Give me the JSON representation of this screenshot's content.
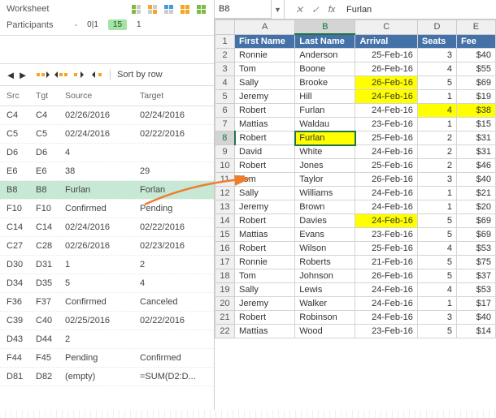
{
  "left": {
    "worksheet_label": "Worksheet",
    "participants_label": "Participants",
    "counts": {
      "dash": "-",
      "zeroOne": "0|1",
      "fifteen": "15",
      "one": "1"
    },
    "sort_label": "Sort by row",
    "columns": {
      "src": "Src",
      "tgt": "Tgt",
      "source": "Source",
      "target": "Target"
    },
    "rows": [
      {
        "src": "C4",
        "tgt": "C4",
        "source": "02/26/2016",
        "target": "02/24/2016"
      },
      {
        "src": "C5",
        "tgt": "C5",
        "source": "02/24/2016",
        "target": "02/22/2016"
      },
      {
        "src": "D6",
        "tgt": "D6",
        "source": "4",
        "target": ""
      },
      {
        "src": "E6",
        "tgt": "E6",
        "source": "38",
        "target": "29"
      },
      {
        "src": "B8",
        "tgt": "B8",
        "source": "Furlan",
        "target": "Forlan",
        "selected": true
      },
      {
        "src": "F10",
        "tgt": "F10",
        "source": "Confirmed",
        "target": "Pending"
      },
      {
        "src": "C14",
        "tgt": "C14",
        "source": "02/24/2016",
        "target": "02/22/2016"
      },
      {
        "src": "C27",
        "tgt": "C28",
        "source": "02/26/2016",
        "target": "02/23/2016"
      },
      {
        "src": "D30",
        "tgt": "D31",
        "source": "1",
        "target": "2"
      },
      {
        "src": "D34",
        "tgt": "D35",
        "source": "5",
        "target": "4"
      },
      {
        "src": "F36",
        "tgt": "F37",
        "source": "Confirmed",
        "target": "Canceled"
      },
      {
        "src": "C39",
        "tgt": "C40",
        "source": "02/25/2016",
        "target": "02/22/2016"
      },
      {
        "src": "D43",
        "tgt": "D44",
        "source": "2",
        "target": ""
      },
      {
        "src": "F44",
        "tgt": "F45",
        "source": "Pending",
        "target": "Confirmed"
      },
      {
        "src": "D81",
        "tgt": "D82",
        "source": "(empty)",
        "target": "=SUM(D2:D..."
      }
    ]
  },
  "formula_bar": {
    "name_box": "B8",
    "value": "Furlan"
  },
  "sheet": {
    "columns": [
      "A",
      "B",
      "C",
      "D",
      "E"
    ],
    "active_col": "B",
    "active_row": 8,
    "header": [
      "First Name",
      "Last Name",
      "Arrival",
      "Seats",
      "Fee"
    ],
    "rows": [
      {
        "n": 2,
        "first": "Ronnie",
        "last": "Anderson",
        "arr": "25-Feb-16",
        "seats": "3",
        "fee": "$40"
      },
      {
        "n": 3,
        "first": "Tom",
        "last": "Boone",
        "arr": "26-Feb-16",
        "seats": "4",
        "fee": "$55"
      },
      {
        "n": 4,
        "first": "Sally",
        "last": "Brooke",
        "arr": "26-Feb-16",
        "arr_hl": true,
        "seats": "5",
        "fee": "$69"
      },
      {
        "n": 5,
        "first": "Jeremy",
        "last": "Hill",
        "arr": "24-Feb-16",
        "arr_hl": true,
        "seats": "1",
        "fee": "$19"
      },
      {
        "n": 6,
        "first": "Robert",
        "last": "Furlan",
        "arr": "24-Feb-16",
        "seats": "4",
        "seats_hl": true,
        "fee": "$38",
        "fee_hl": true
      },
      {
        "n": 7,
        "first": "Mattias",
        "last": "Waldau",
        "arr": "23-Feb-16",
        "seats": "1",
        "fee": "$15"
      },
      {
        "n": 8,
        "first": "Robert",
        "last": "Furlan",
        "last_active": true,
        "arr": "25-Feb-16",
        "seats": "2",
        "fee": "$31"
      },
      {
        "n": 9,
        "first": "David",
        "last": "White",
        "arr": "24-Feb-16",
        "seats": "2",
        "fee": "$31"
      },
      {
        "n": 10,
        "first": "Robert",
        "last": "Jones",
        "arr": "25-Feb-16",
        "seats": "2",
        "fee": "$46"
      },
      {
        "n": 11,
        "first": "Tom",
        "last": "Taylor",
        "arr": "26-Feb-16",
        "seats": "3",
        "fee": "$40"
      },
      {
        "n": 12,
        "first": "Sally",
        "last": "Williams",
        "arr": "24-Feb-16",
        "seats": "1",
        "fee": "$21"
      },
      {
        "n": 13,
        "first": "Jeremy",
        "last": "Brown",
        "arr": "24-Feb-16",
        "seats": "1",
        "fee": "$20"
      },
      {
        "n": 14,
        "first": "Robert",
        "last": "Davies",
        "arr": "24-Feb-16",
        "arr_hl": true,
        "seats": "5",
        "fee": "$69"
      },
      {
        "n": 15,
        "first": "Mattias",
        "last": "Evans",
        "arr": "23-Feb-16",
        "seats": "5",
        "fee": "$69"
      },
      {
        "n": 16,
        "first": "Robert",
        "last": "Wilson",
        "arr": "25-Feb-16",
        "seats": "4",
        "fee": "$53"
      },
      {
        "n": 17,
        "first": "Ronnie",
        "last": "Roberts",
        "arr": "21-Feb-16",
        "seats": "5",
        "fee": "$75"
      },
      {
        "n": 18,
        "first": "Tom",
        "last": "Johnson",
        "arr": "26-Feb-16",
        "seats": "5",
        "fee": "$37"
      },
      {
        "n": 19,
        "first": "Sally",
        "last": "Lewis",
        "arr": "24-Feb-16",
        "seats": "4",
        "fee": "$53"
      },
      {
        "n": 20,
        "first": "Jeremy",
        "last": "Walker",
        "arr": "24-Feb-16",
        "seats": "1",
        "fee": "$17"
      },
      {
        "n": 21,
        "first": "Robert",
        "last": "Robinson",
        "arr": "24-Feb-16",
        "seats": "3",
        "fee": "$40"
      },
      {
        "n": 22,
        "first": "Mattias",
        "last": "Wood",
        "arr": "23-Feb-16",
        "seats": "5",
        "fee": "$14"
      }
    ]
  },
  "colors": {
    "header_bg": "#4472a8",
    "highlight": "#ffff00",
    "sel_green": "#217346",
    "diff_sel": "#c6e8d4",
    "pill15": "#a6e2a6",
    "icon_green": "#7fba42",
    "icon_orange": "#f5a623",
    "icon_blue": "#3f9de0"
  }
}
